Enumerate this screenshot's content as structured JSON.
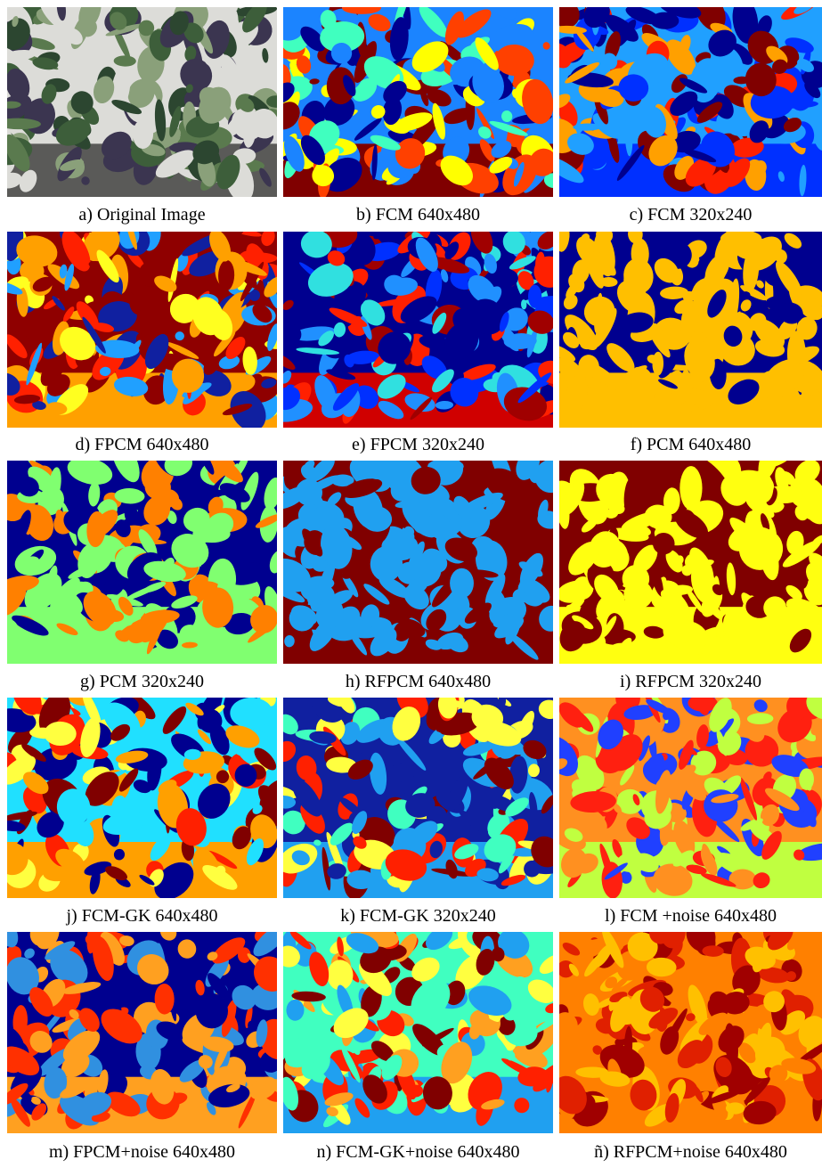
{
  "figure": {
    "panels": [
      {
        "caption": "a) Original Image"
      },
      {
        "caption": "b) FCM 640x480"
      },
      {
        "caption": "c) FCM 320x240"
      },
      {
        "caption": "d) FPCM 640x480"
      },
      {
        "caption": "e) FPCM 320x240"
      },
      {
        "caption": "f) PCM 640x480"
      },
      {
        "caption": "g) PCM 320x240"
      },
      {
        "caption": "h) RFPCM 640x480"
      },
      {
        "caption": "i) RFPCM 320x240"
      },
      {
        "caption": "j) FCM-GK 640x480"
      },
      {
        "caption": "k) FCM-GK 320x240"
      },
      {
        "caption": "l) FCM +noise 640x480"
      },
      {
        "caption": "m) FPCM+noise 640x480"
      },
      {
        "caption": "n) FCM-GK+noise 640x480"
      },
      {
        "caption": "ñ) RFPCM+noise 640x480"
      }
    ]
  }
}
